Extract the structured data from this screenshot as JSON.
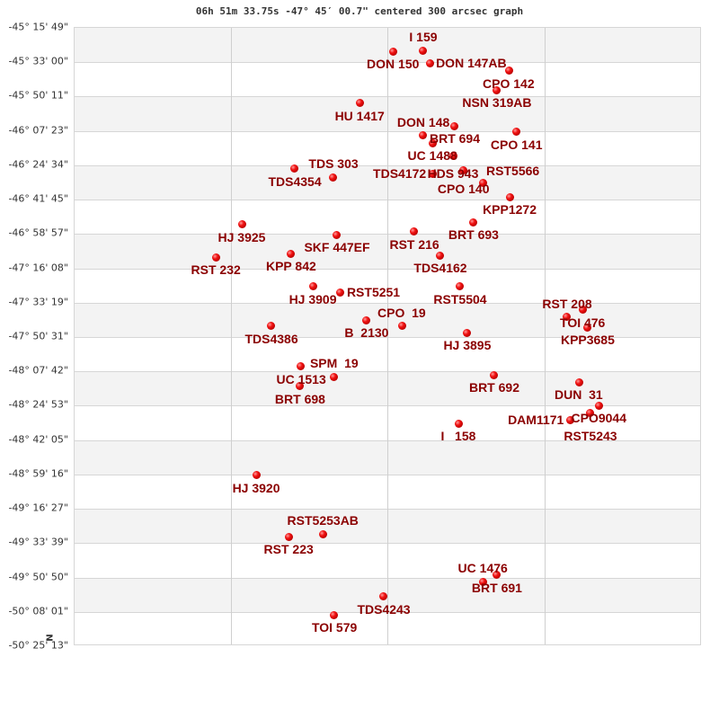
{
  "title": "06h 51m 33.75s -47° 45′ 00.7\" centered 300 arcsec graph",
  "north_label": "N",
  "chart_data": {
    "type": "scatter",
    "title": "06h 51m 33.75s -47° 45′ 00.7\" centered 300 arcsec graph",
    "y_ticks": [
      "-45° 15' 49\"",
      "-45° 33' 00\"",
      "-45° 50' 11\"",
      "-46° 07' 23\"",
      "-46° 24' 34\"",
      "-46° 41' 45\"",
      "-46° 58' 57\"",
      "-47° 16' 08\"",
      "-47° 33' 19\"",
      "-47° 50' 31\"",
      "-48° 07' 42\"",
      "-48° 24' 53\"",
      "-48° 42' 05\"",
      "-48° 59' 16\"",
      "-49° 16' 27\"",
      "-49° 33' 39\"",
      "-49° 50' 50\"",
      "-50° 08' 01\"",
      "-50° 25' 13\""
    ],
    "ylim": [
      -45.2636,
      -50.4203
    ],
    "xlim": [
      0,
      4
    ],
    "x_gridlines": [
      1,
      2,
      3
    ],
    "grid": true,
    "point_color": "#dd0000",
    "label_color": "#8b0000",
    "points": [
      {
        "label": "DON 150",
        "x": 2.029,
        "dec": -45.459
      },
      {
        "label": "I 159",
        "x": 2.223,
        "dec": -45.451
      },
      {
        "label": "DON 147AB",
        "x": 2.264,
        "dec": -45.556
      },
      {
        "label": "CPO 142",
        "x": 2.768,
        "dec": -45.623
      },
      {
        "label": "NSN 319AB",
        "x": 2.693,
        "dec": -45.781
      },
      {
        "label": "HU 1417",
        "x": 1.817,
        "dec": -45.893
      },
      {
        "label": "BRT 694",
        "x": 2.424,
        "dec": -46.081
      },
      {
        "label": "CPO 141",
        "x": 2.819,
        "dec": -46.133
      },
      {
        "label": "DON 148",
        "x": 2.223,
        "dec": -46.163
      },
      {
        "label": "UC 1488",
        "x": 2.281,
        "dec": -46.223
      },
      {
        "label": "HDS 943",
        "x": 2.413,
        "dec": -46.328
      },
      {
        "label": "CPO 140",
        "x": 2.481,
        "dec": -46.455
      },
      {
        "label": "TDS4172",
        "x": 2.281,
        "dec": -46.478
      },
      {
        "label": "RST5566",
        "x": 2.602,
        "dec": -46.56
      },
      {
        "label": "KPP1272",
        "x": 2.774,
        "dec": -46.673
      },
      {
        "label": "TDS4354",
        "x": 1.404,
        "dec": -46.44
      },
      {
        "label": "TDS 303",
        "x": 1.65,
        "dec": -46.508
      },
      {
        "label": "HJ 3925",
        "x": 1.066,
        "dec": -46.905
      },
      {
        "label": "SKF 447EF",
        "x": 1.673,
        "dec": -46.988
      },
      {
        "label": "RST 216",
        "x": 2.166,
        "dec": -46.965
      },
      {
        "label": "BRT 693",
        "x": 2.544,
        "dec": -46.883
      },
      {
        "label": "RST 232",
        "x": 0.9,
        "dec": -47.175
      },
      {
        "label": "KPP 842",
        "x": 1.381,
        "dec": -47.145
      },
      {
        "label": "TDS4162",
        "x": 2.332,
        "dec": -47.16
      },
      {
        "label": "HJ 3909",
        "x": 1.519,
        "dec": -47.422
      },
      {
        "label": "RST5251",
        "x": 1.696,
        "dec": -47.472
      },
      {
        "label": "RST5504",
        "x": 2.458,
        "dec": -47.422
      },
      {
        "label": "TDS4386",
        "x": 1.255,
        "dec": -47.752
      },
      {
        "label": "B  2130",
        "x": 1.862,
        "dec": -47.7
      },
      {
        "label": "CPO  19",
        "x": 2.086,
        "dec": -47.752
      },
      {
        "label": "HJ 3895",
        "x": 2.504,
        "dec": -47.805
      },
      {
        "label": "TOI 476",
        "x": 3.238,
        "dec": -47.617
      },
      {
        "label": "RST 208",
        "x": 3.14,
        "dec": -47.677
      },
      {
        "label": "KPP3685",
        "x": 3.272,
        "dec": -47.76
      },
      {
        "label": "UC 1513",
        "x": 1.444,
        "dec": -48.089
      },
      {
        "label": "SPM  19",
        "x": 1.656,
        "dec": -48.172
      },
      {
        "label": "BRT 698",
        "x": 1.438,
        "dec": -48.254
      },
      {
        "label": "BRT 692",
        "x": 2.676,
        "dec": -48.157
      },
      {
        "label": "DUN  31",
        "x": 3.215,
        "dec": -48.217
      },
      {
        "label": "CPO9044",
        "x": 3.341,
        "dec": -48.412
      },
      {
        "label": "RST5243",
        "x": 3.289,
        "dec": -48.472
      },
      {
        "label": "DAM1171",
        "x": 3.158,
        "dec": -48.532
      },
      {
        "label": "I   158",
        "x": 2.447,
        "dec": -48.562
      },
      {
        "label": "HJ 3920",
        "x": 1.158,
        "dec": -48.996
      },
      {
        "label": "RST 223",
        "x": 1.364,
        "dec": -49.506
      },
      {
        "label": "RST5253AB",
        "x": 1.582,
        "dec": -49.484
      },
      {
        "label": "BRT 691",
        "x": 2.693,
        "dec": -49.828
      },
      {
        "label": "UC 1476",
        "x": 2.602,
        "dec": -49.881
      },
      {
        "label": "TDS4243",
        "x": 1.971,
        "dec": -50.008
      },
      {
        "label": "TOI 579",
        "x": 1.656,
        "dec": -50.158
      }
    ]
  }
}
